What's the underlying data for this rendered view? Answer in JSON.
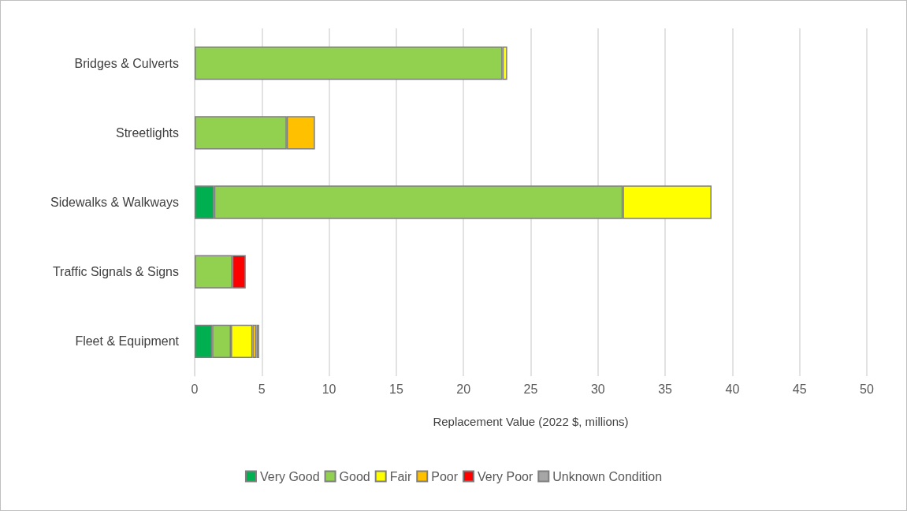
{
  "chart_data": {
    "type": "bar",
    "orientation": "horizontal",
    "stacked": true,
    "xlabel": "Replacement Value (2022 $, millions)",
    "categories": [
      "Bridges & Culverts",
      "Streetlights",
      "Sidewalks & Walkways",
      "Traffic Signals & Signs",
      "Fleet & Equipment"
    ],
    "series": [
      {
        "name": "Very Good",
        "color": "#00b050",
        "values": [
          null,
          null,
          1.45,
          null,
          1.3
        ]
      },
      {
        "name": "Good",
        "color": "#92d050",
        "values": [
          22.9,
          6.85,
          30.4,
          2.8,
          1.4
        ]
      },
      {
        "name": "Fair",
        "color": "#ffff00",
        "values": [
          0.35,
          null,
          6.6,
          null,
          1.6
        ]
      },
      {
        "name": "Poor",
        "color": "#ffc000",
        "values": [
          null,
          2.1,
          null,
          null,
          0.3
        ]
      },
      {
        "name": "Very Poor",
        "color": "#ff0000",
        "values": [
          null,
          null,
          null,
          1.0,
          null
        ]
      },
      {
        "name": "Unknown Condition",
        "color": "#a6a6a6",
        "values": [
          null,
          null,
          null,
          null,
          0.2
        ]
      }
    ],
    "xlim": [
      0,
      50
    ],
    "xticks": [
      0,
      5,
      10,
      15,
      20,
      25,
      30,
      35,
      40,
      45,
      50
    ],
    "grid": "x",
    "legend": "bottom"
  }
}
